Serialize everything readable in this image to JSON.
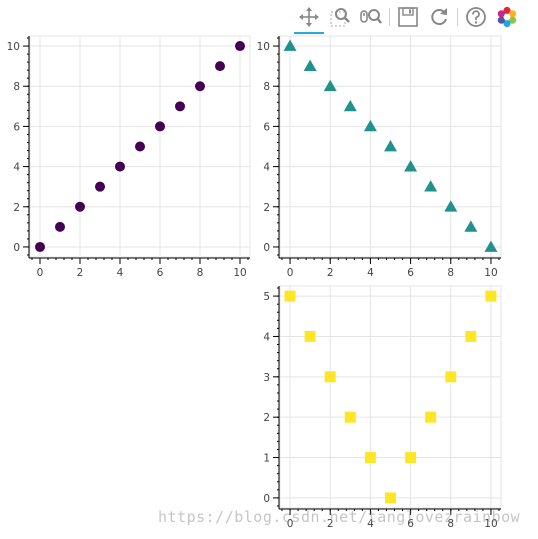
{
  "toolbar": {
    "tools": [
      {
        "name": "pan-tool",
        "icon": "pan-icon",
        "active": true
      },
      {
        "name": "box-zoom-tool",
        "icon": "box-zoom-icon",
        "active": false
      },
      {
        "name": "wheel-zoom-tool",
        "icon": "wheel-zoom-icon",
        "active": false
      },
      {
        "name": "save-tool",
        "icon": "save-icon",
        "active": false
      },
      {
        "name": "reset-tool",
        "icon": "reset-icon",
        "active": false
      },
      {
        "name": "help-tool",
        "icon": "help-icon",
        "active": false
      },
      {
        "name": "bokeh-logo",
        "icon": "bokeh-logo-icon",
        "active": false
      }
    ]
  },
  "watermark": "https://blog.csdn.net/tanglovezrainbow",
  "chart_data": [
    {
      "type": "scatter",
      "marker": "circle",
      "color": "#440154",
      "x": [
        0,
        1,
        2,
        3,
        4,
        5,
        6,
        7,
        8,
        9,
        10
      ],
      "y": [
        0,
        1,
        2,
        3,
        4,
        5,
        6,
        7,
        8,
        9,
        10
      ],
      "xlim": [
        -0.5,
        10.5
      ],
      "ylim": [
        -0.5,
        10.5
      ],
      "xticks": [
        0,
        2,
        4,
        6,
        8,
        10
      ],
      "yticks": [
        0,
        2,
        4,
        6,
        8,
        10
      ],
      "grid": true
    },
    {
      "type": "scatter",
      "marker": "triangle",
      "color": "#21918c",
      "x": [
        0,
        1,
        2,
        3,
        4,
        5,
        6,
        7,
        8,
        9,
        10
      ],
      "y": [
        10,
        9,
        8,
        7,
        6,
        5,
        4,
        3,
        2,
        1,
        0
      ],
      "xlim": [
        -0.5,
        10.5
      ],
      "ylim": [
        -0.5,
        10.5
      ],
      "xticks": [
        0,
        2,
        4,
        6,
        8,
        10
      ],
      "yticks": [
        0,
        2,
        4,
        6,
        8,
        10
      ],
      "grid": true
    },
    {
      "type": "scatter",
      "marker": "square",
      "color": "#fde725",
      "x": [
        0,
        1,
        2,
        3,
        4,
        5,
        6,
        7,
        8,
        9,
        10
      ],
      "y": [
        5,
        4,
        3,
        2,
        1,
        0,
        1,
        2,
        3,
        4,
        5
      ],
      "xlim": [
        -0.5,
        10.5
      ],
      "ylim": [
        -0.25,
        5.25
      ],
      "xticks": [
        0,
        2,
        4,
        6,
        8,
        10
      ],
      "yticks": [
        0,
        1,
        2,
        3,
        4,
        5
      ],
      "grid": true
    }
  ]
}
